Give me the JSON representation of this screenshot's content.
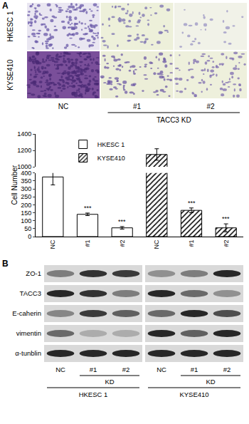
{
  "panel_a": {
    "label": "A",
    "rows": [
      "HKESC 1",
      "KYSE410"
    ],
    "columns": [
      "NC",
      "#1",
      "#2"
    ],
    "group_label": "TACC3 KD"
  },
  "chart_data": {
    "type": "bar",
    "y_label": "Cell Number",
    "categories": [
      "NC",
      "#1",
      "#2",
      "NC",
      "#1",
      "#2"
    ],
    "series": [
      {
        "name": "HKESC 1",
        "color": "#ffffff",
        "marker": "open",
        "values": [
          375,
          140,
          55,
          null,
          null,
          null
        ],
        "errors": [
          50,
          8,
          8,
          null,
          null,
          null
        ]
      },
      {
        "name": "KYSE410",
        "color": "#ffffff",
        "marker": "hatched",
        "values": [
          null,
          null,
          null,
          1150,
          165,
          55
        ],
        "errors": [
          null,
          null,
          null,
          70,
          15,
          25
        ]
      }
    ],
    "ylim": [
      0,
      1400
    ],
    "yticks": [
      0,
      50,
      100,
      150,
      200,
      250,
      300,
      350,
      400,
      1000,
      1200,
      1400
    ],
    "legend": "upper left",
    "annotations": [
      {
        "x": 1,
        "series": "HKESC 1",
        "text": "***"
      },
      {
        "x": 2,
        "series": "HKESC 1",
        "text": "***"
      },
      {
        "x": 4,
        "series": "KYSE410",
        "text": "***"
      },
      {
        "x": 5,
        "series": "KYSE410",
        "text": "***"
      }
    ]
  },
  "panel_b": {
    "label": "B",
    "rows": [
      "ZO-1",
      "TACC3",
      "E-caherin",
      "vimentin",
      "α-tunblin"
    ],
    "lanes": [
      "NC",
      "#1",
      "#2"
    ],
    "group_label": "KD",
    "cell_lines": [
      "HKESC 1",
      "KYSE410"
    ]
  }
}
